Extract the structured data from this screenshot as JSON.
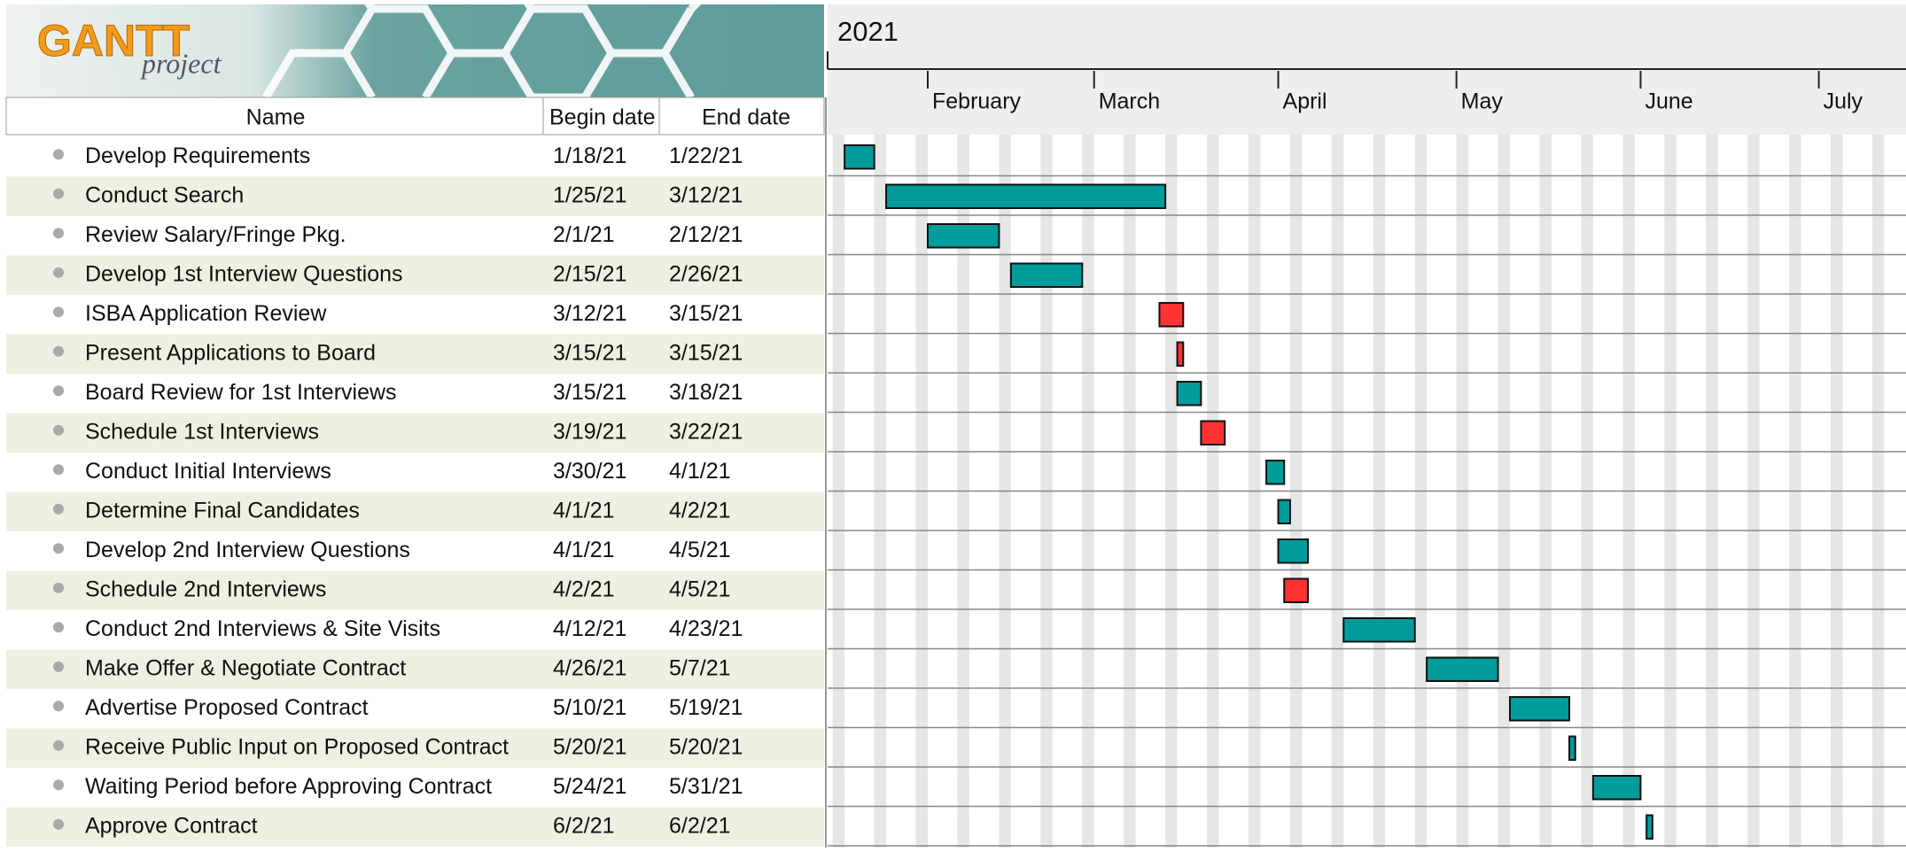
{
  "logo": {
    "title": "GANTT",
    "subtitle": "project"
  },
  "columns": [
    "Name",
    "Begin date",
    "End date"
  ],
  "timeline": {
    "year": "2021",
    "months": [
      "February",
      "March",
      "April",
      "May",
      "June",
      "July"
    ]
  },
  "colors": {
    "normal": "#009b9b",
    "critical": "#ff3333"
  },
  "tasks": [
    {
      "name": "Develop Requirements",
      "begin": "1/18/21",
      "end": "1/22/21",
      "critical": false
    },
    {
      "name": "Conduct Search",
      "begin": "1/25/21",
      "end": "3/12/21",
      "critical": false
    },
    {
      "name": "Review Salary/Fringe Pkg.",
      "begin": "2/1/21",
      "end": "2/12/21",
      "critical": false
    },
    {
      "name": "Develop 1st Interview Questions",
      "begin": "2/15/21",
      "end": "2/26/21",
      "critical": false
    },
    {
      "name": "ISBA Application Review",
      "begin": "3/12/21",
      "end": "3/15/21",
      "critical": true
    },
    {
      "name": "Present Applications to Board",
      "begin": "3/15/21",
      "end": "3/15/21",
      "critical": true
    },
    {
      "name": "Board Review for 1st Interviews",
      "begin": "3/15/21",
      "end": "3/18/21",
      "critical": false
    },
    {
      "name": "Schedule 1st Interviews",
      "begin": "3/19/21",
      "end": "3/22/21",
      "critical": true
    },
    {
      "name": "Conduct Initial Interviews",
      "begin": "3/30/21",
      "end": "4/1/21",
      "critical": false
    },
    {
      "name": "Determine Final Candidates",
      "begin": "4/1/21",
      "end": "4/2/21",
      "critical": false
    },
    {
      "name": "Develop 2nd Interview Questions",
      "begin": "4/1/21",
      "end": "4/5/21",
      "critical": false
    },
    {
      "name": "Schedule 2nd Interviews",
      "begin": "4/2/21",
      "end": "4/5/21",
      "critical": true
    },
    {
      "name": "Conduct 2nd Interviews & Site Visits",
      "begin": "4/12/21",
      "end": "4/23/21",
      "critical": false
    },
    {
      "name": "Make Offer & Negotiate Contract",
      "begin": "4/26/21",
      "end": "5/7/21",
      "critical": false
    },
    {
      "name": "Advertise Proposed Contract",
      "begin": "5/10/21",
      "end": "5/19/21",
      "critical": false
    },
    {
      "name": "Receive Public Input on Proposed Contract",
      "begin": "5/20/21",
      "end": "5/20/21",
      "critical": false
    },
    {
      "name": "Waiting Period before Approving Contract",
      "begin": "5/24/21",
      "end": "5/31/21",
      "critical": false
    },
    {
      "name": "Approve Contract",
      "begin": "6/2/21",
      "end": "6/2/21",
      "critical": false
    }
  ]
}
